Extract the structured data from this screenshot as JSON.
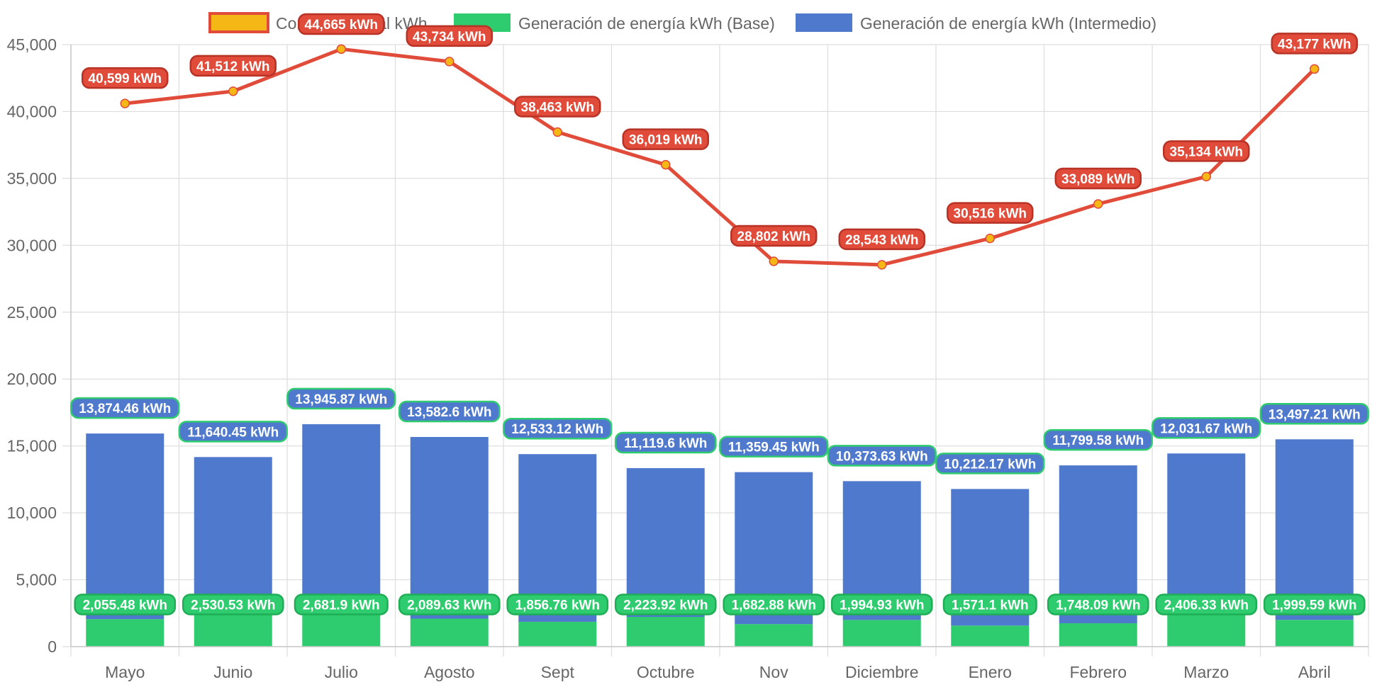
{
  "chart_data": {
    "type": "bar",
    "categories": [
      "Mayo",
      "Junio",
      "Julio",
      "Agosto",
      "Sept",
      "Octubre",
      "Nov",
      "Diciembre",
      "Enero",
      "Febrero",
      "Marzo",
      "Abril"
    ],
    "ylim": [
      0,
      45000
    ],
    "yticks": [
      "0",
      "5,000",
      "10,000",
      "15,000",
      "20,000",
      "25,000",
      "30,000",
      "35,000",
      "40,000",
      "45,000"
    ],
    "grid": true,
    "legend_position": "top",
    "stacked": true,
    "series": [
      {
        "name": "Consumo anual kWh",
        "type": "line",
        "color": "#e04b3a",
        "point_color": "#f5b716",
        "values": [
          40599,
          41512,
          44665,
          43734,
          38463,
          36019,
          28802,
          28543,
          30516,
          33089,
          35134,
          43177
        ],
        "labels": [
          "40,599 kWh",
          "41,512 kWh",
          "44,665 kWh",
          "43,734 kWh",
          "38,463 kWh",
          "36,019 kWh",
          "28,802 kWh",
          "28,543 kWh",
          "30,516 kWh",
          "33,089 kWh",
          "35,134 kWh",
          "43,177 kWh"
        ]
      },
      {
        "name": "Generación de energía kWh (Base)",
        "type": "bar",
        "color": "#2ecc6e",
        "values": [
          2055.48,
          2530.53,
          2681.9,
          2089.63,
          1856.76,
          2223.92,
          1682.88,
          1994.93,
          1571.1,
          1748.09,
          2406.33,
          1999.59
        ],
        "labels": [
          "2,055.48 kWh",
          "2,530.53 kWh",
          "2,681.9 kWh",
          "2,089.63 kWh",
          "1,856.76 kWh",
          "2,223.92 kWh",
          "1,682.88 kWh",
          "1,994.93 kWh",
          "1,571.1 kWh",
          "1,748.09 kWh",
          "2,406.33 kWh",
          "1,999.59 kWh"
        ]
      },
      {
        "name": "Generación de energía kWh (Intermedio)",
        "type": "bar",
        "color": "#4f79cc",
        "values": [
          13874.46,
          11640.45,
          13945.87,
          13582.6,
          12533.12,
          11119.6,
          11359.45,
          10373.63,
          10212.17,
          11799.58,
          12031.67,
          13497.21
        ],
        "labels": [
          "13,874.46 kWh",
          "11,640.45 kWh",
          "13,945.87 kWh",
          "13,582.6 kWh",
          "12,533.12 kWh",
          "11,119.6 kWh",
          "11,359.45 kWh",
          "10,373.63 kWh",
          "10,212.17 kWh",
          "11,799.58 kWh",
          "12,031.67 kWh",
          "13,497.21 kWh"
        ]
      }
    ]
  }
}
